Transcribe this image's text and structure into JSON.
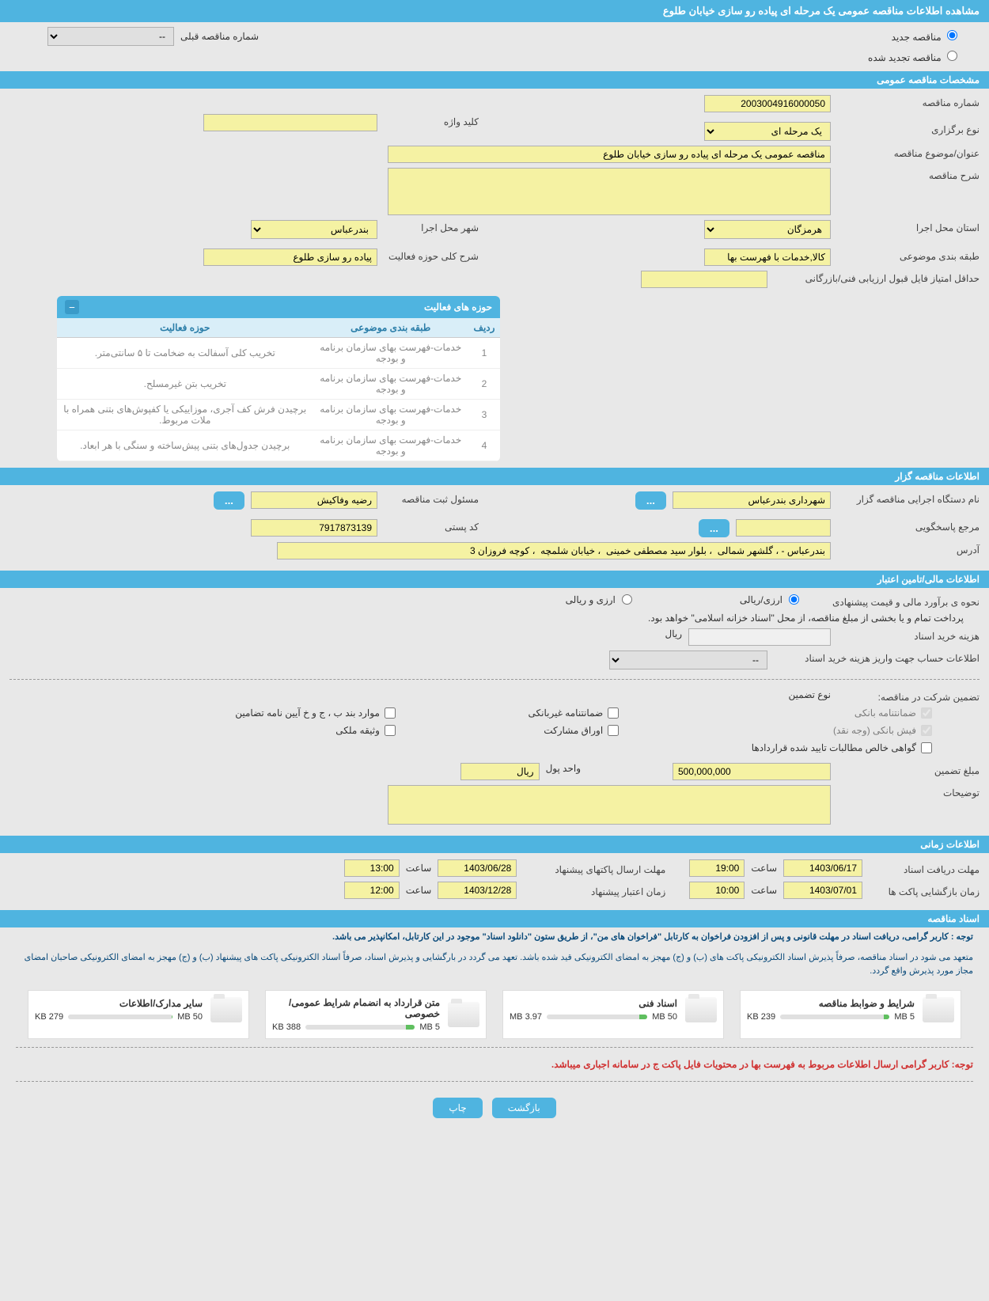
{
  "page_title": "مشاهده اطلاعات مناقصه عمومی یک مرحله ای پیاده رو سازی خیابان طلوع",
  "radio": {
    "new_tender": "مناقصه جدید",
    "renewed_tender": "مناقصه تجدید شده",
    "prev_number_label": "شماره مناقصه قبلی",
    "prev_number_value": "--"
  },
  "sections": {
    "general": "مشخصات مناقصه عمومی",
    "organizer": "اطلاعات مناقصه گزار",
    "financial": "اطلاعات مالی/تامین اعتبار",
    "timing": "اطلاعات زمانی",
    "documents": "اسناد مناقصه"
  },
  "general": {
    "tender_number_label": "شماره مناقصه",
    "tender_number": "2003004916000050",
    "type_label": "نوع برگزاری",
    "type_value": "یک مرحله ای",
    "keyword_label": "کلید واژه",
    "keyword_value": "",
    "title_label": "عنوان/موضوع مناقصه",
    "title_value": "مناقصه عمومی یک مرحله ای پیاده رو سازی خیابان طلوع",
    "desc_label": "شرح مناقصه",
    "desc_value": "",
    "province_label": "استان محل اجرا",
    "province_value": "هرمزگان",
    "city_label": "شهر محل اجرا",
    "city_value": "بندرعباس",
    "category_label": "طبقه بندی موضوعی",
    "category_value": "کالا,خدمات با فهرست بها",
    "activity_desc_label": "شرح کلی حوزه فعالیت",
    "activity_desc_value": "پیاده رو سازی طلوع",
    "min_score_label": "حداقل امتیاز فایل قبول ارزیابی فنی/بازرگانی",
    "min_score_value": ""
  },
  "activities": {
    "panel_title": "حوزه های فعالیت",
    "headers": {
      "row": "ردیف",
      "category": "طبقه بندی موضوعی",
      "field": "حوزه فعالیت"
    },
    "rows": [
      {
        "n": "1",
        "cat": "خدمات-فهرست بهای سازمان برنامه و بودجه",
        "field": "تخریب کلی آسفالت  به ضخامت تا ۵ سانتی‌متر."
      },
      {
        "n": "2",
        "cat": "خدمات-فهرست بهای سازمان برنامه و بودجه",
        "field": "تخریب بتن غیرمسلح."
      },
      {
        "n": "3",
        "cat": "خدمات-فهرست بهای سازمان برنامه و بودجه",
        "field": "برچیدن فرش کف آجری، موزاییکی یا کفپوش‌های بتنی همراه با ملات مربوط."
      },
      {
        "n": "4",
        "cat": "خدمات-فهرست بهای سازمان برنامه و بودجه",
        "field": "برچیدن جدول‌های بتنی پیش‌ساخته و سنگی با هر ابعاد."
      }
    ]
  },
  "organizer": {
    "exec_label": "نام دستگاه اجرایی مناقصه گزار",
    "exec_value": "شهرداری بندرعباس",
    "registrar_label": "مسئول ثبت مناقصه",
    "registrar_value": "رضیه وفاکیش",
    "responder_label": "مرجع پاسخگویی",
    "responder_value": "",
    "postal_label": "کد پستی",
    "postal_value": "7917873139",
    "address_label": "آدرس",
    "address_value": "بندرعباس - ، گلشهر شمالی  ، بلوار سید مصطفی خمینی  ، خیابان شلمچه  ، کوچه فروزان 3"
  },
  "financial": {
    "method_label": "نحوه ی برآورد مالی و قیمت پیشنهادی",
    "opt_rial": "ارزی/ریالی",
    "opt_both": "ارزی و ریالی",
    "payment_note": "پرداخت تمام و یا بخشی از مبلغ مناقصه، از محل \"اسناد خزانه اسلامی\" خواهد بود.",
    "cost_label": "هزینه خرید اسناد",
    "cost_value": "",
    "cost_unit": "ریال",
    "account_label": "اطلاعات حساب جهت واریز هزینه خرید اسناد",
    "account_value": "--",
    "guarantee_label": "تضمین شرکت در مناقصه:",
    "guarantee_type_label": "نوع تضمین",
    "checks": {
      "bank_guarantee": "ضمانتنامه بانکی",
      "nonbank_guarantee": "ضمانتنامه غیربانکی",
      "bond_items": "موارد بند ب ، ج و خ آیین نامه تضامین",
      "bank_receipt": "فیش بانکی (وجه نقد)",
      "securities": "اوراق مشارکت",
      "property": "وثیقه ملکی",
      "cert": "گواهی خالص مطالبات تایید شده قراردادها"
    },
    "amount_label": "مبلغ تضمین",
    "amount_value": "500,000,000",
    "unit_label": "واحد پول",
    "unit_value": "ریال",
    "notes_label": "توضیحات",
    "notes_value": ""
  },
  "timing": {
    "doc_deadline_label": "مهلت دریافت اسناد",
    "doc_deadline_date": "1403/06/17",
    "doc_deadline_time_label": "ساعت",
    "doc_deadline_time": "19:00",
    "envelope_deadline_label": "مهلت ارسال پاکتهای پیشنهاد",
    "envelope_deadline_date": "1403/06/28",
    "envelope_deadline_time": "13:00",
    "opening_label": "زمان بازگشایی پاکت ها",
    "opening_date": "1403/07/01",
    "opening_time": "10:00",
    "validity_label": "زمان اعتبار پیشنهاد",
    "validity_date": "1403/12/28",
    "validity_time": "12:00"
  },
  "docs": {
    "note1": "توجه : کاربر گرامی، دریافت اسناد در مهلت قانونی و پس از افزودن فراخوان به کارتابل \"فراخوان های من\"، از طریق ستون \"دانلود اسناد\" موجود در این کارتابل، امکانپذیر می باشد.",
    "note2": "متعهد می شود در اسناد مناقصه، صرفاً پذیرش اسناد الکترونیکی پاکت های (ب) و (ج) مهجز به امضای الکترونیکی قید شده باشد. تعهد می گردد در بارگشایی و پذیرش اسناد، صرفاً اسناد الکترونیکی پاکت های پیشنهاد (ب) و (ج) مهجز به امضای الکترونیکی صاحبان امضای مجاز مورد پذیرش واقع گردد.",
    "files": [
      {
        "name": "شرایط و ضوابط مناقصه",
        "used": "239 KB",
        "total": "5 MB",
        "pct": 5
      },
      {
        "name": "اسناد فنی",
        "used": "3.97 MB",
        "total": "50 MB",
        "pct": 8
      },
      {
        "name": "متن قرارداد به انضمام شرایط عمومی/خصوصی",
        "used": "388 KB",
        "total": "5 MB",
        "pct": 8
      },
      {
        "name": "سایر مدارک/اطلاعات",
        "used": "279 KB",
        "total": "50 MB",
        "pct": 1
      }
    ],
    "bottom_note": "توجه: کاربر گرامی ارسال اطلاعات مربوط به فهرست بها در محتویات فایل پاکت ج در سامانه اجباری میباشد."
  },
  "buttons": {
    "back": "بازگشت",
    "print": "چاپ"
  },
  "colors": {
    "header_bg": "#4fb4e0",
    "yellow_bg": "#f5f2a3",
    "red": "#d03030",
    "navy": "#0a4a7a"
  }
}
